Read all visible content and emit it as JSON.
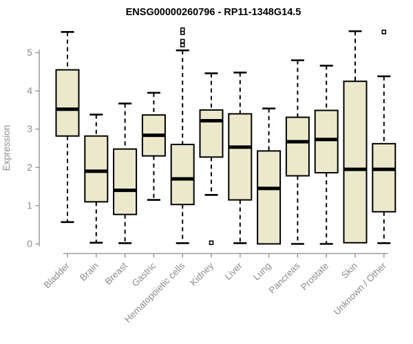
{
  "title": "ENSG00000260796 - RP11-1348G14.5",
  "chart_data": {
    "type": "boxplot",
    "title": "ENSG00000260796 - RP11-1348G14.5",
    "xlabel": "",
    "ylabel": "Expression",
    "ylim": [
      -0.2,
      5.75
    ],
    "yticks": [
      0,
      1,
      2,
      3,
      4,
      5
    ],
    "grid": false,
    "legend": "none",
    "box_fill_color": "#ece8cc",
    "box_border_color": "#000000",
    "median_color": "#000000",
    "axis_color": "#8c8c8c",
    "tick_label_color": "#8c8c8c",
    "categories": [
      "Bladder",
      "Brain",
      "Breast",
      "Gastric",
      "Hematopoietic cells",
      "Kidney",
      "Liver",
      "Lung",
      "Pancreas",
      "Prostate",
      "Skin",
      "Unknown / Other"
    ],
    "series": [
      {
        "category": "Bladder",
        "low": 0.57,
        "q1": 2.82,
        "median": 3.52,
        "q3": 4.55,
        "high": 5.54,
        "outliers": []
      },
      {
        "category": "Brain",
        "low": 0.03,
        "q1": 1.1,
        "median": 1.9,
        "q3": 2.82,
        "high": 3.38,
        "outliers": []
      },
      {
        "category": "Breast",
        "low": 0.02,
        "q1": 0.77,
        "median": 1.4,
        "q3": 2.48,
        "high": 3.67,
        "outliers": []
      },
      {
        "category": "Gastric",
        "low": 1.15,
        "q1": 2.3,
        "median": 2.84,
        "q3": 3.37,
        "high": 3.95,
        "outliers": []
      },
      {
        "category": "Hematopoietic cells",
        "low": 0.02,
        "q1": 1.03,
        "median": 1.7,
        "q3": 2.6,
        "high": 5.06,
        "outliers": [
          5.2,
          5.3,
          5.52,
          5.6
        ]
      },
      {
        "category": "Kidney",
        "low": 1.28,
        "q1": 2.27,
        "median": 3.22,
        "q3": 3.5,
        "high": 4.46,
        "outliers": [
          0.03
        ]
      },
      {
        "category": "Liver",
        "low": 0.02,
        "q1": 1.15,
        "median": 2.53,
        "q3": 3.4,
        "high": 4.48,
        "outliers": []
      },
      {
        "category": "Lung",
        "low": 0.0,
        "q1": 0.0,
        "median": 1.45,
        "q3": 2.43,
        "high": 3.54,
        "outliers": []
      },
      {
        "category": "Pancreas",
        "low": 0.0,
        "q1": 1.78,
        "median": 2.67,
        "q3": 3.31,
        "high": 4.8,
        "outliers": []
      },
      {
        "category": "Prostate",
        "low": 0.0,
        "q1": 1.86,
        "median": 2.73,
        "q3": 3.49,
        "high": 4.66,
        "outliers": []
      },
      {
        "category": "Skin",
        "low": 0.03,
        "q1": 0.03,
        "median": 1.95,
        "q3": 4.25,
        "high": 5.56,
        "outliers": []
      },
      {
        "category": "Unknown / Other",
        "low": 0.02,
        "q1": 0.84,
        "median": 1.95,
        "q3": 2.62,
        "high": 4.38,
        "outliers": [
          5.54
        ]
      }
    ]
  }
}
